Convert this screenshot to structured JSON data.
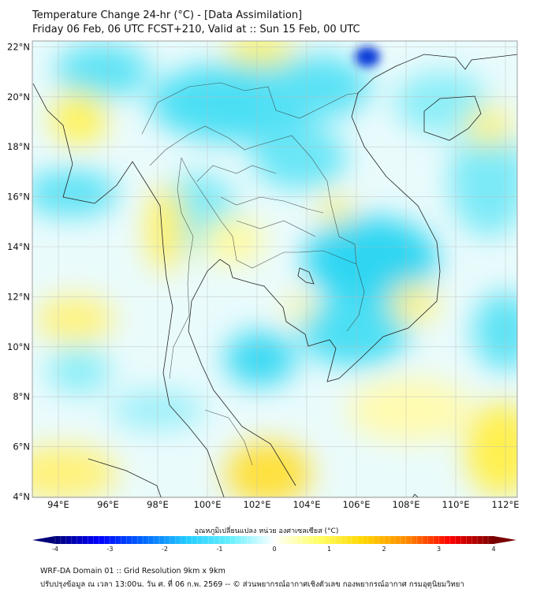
{
  "header": {
    "title": "Temperature Change 24-hr (°C) - [Data Assimilation]",
    "subtitle": "Friday 06 Feb, 06 UTC FCST+210, Valid at :: Sun 15 Feb, 00 UTC"
  },
  "map": {
    "lat_ticks": [
      "4°N",
      "6°N",
      "8°N",
      "10°N",
      "12°N",
      "14°N",
      "16°N",
      "18°N",
      "20°N",
      "22°N"
    ],
    "lon_ticks": [
      "94°E",
      "96°E",
      "98°E",
      "100°E",
      "102°E",
      "104°E",
      "106°E",
      "108°E",
      "110°E",
      "112°E"
    ]
  },
  "colorbar": {
    "title": "อุณหภูมิเปลี่ยนแปลง หน่วย องศาเซลเซียส (°C)",
    "ticks": [
      "-4",
      "-3",
      "-2",
      "-1",
      "0",
      "1",
      "2",
      "3",
      "4"
    ],
    "range": [
      -4,
      4
    ],
    "colors": [
      "#00007a",
      "#0000ff",
      "#0066ff",
      "#22ccff",
      "#66f0ff",
      "#ffffff",
      "#ffff66",
      "#ffd700",
      "#ff8c00",
      "#ff0000",
      "#7a0000"
    ]
  },
  "footer": {
    "line1": "WRF-DA Domain 01 :: Grid Resolution 9km x 9km",
    "line2": "ปรับปรุงข้อมูล ณ เวลา 13:00น. วัน ศ. ที่ 06 ก.พ. 2569 -- © ส่วนพยากรณ์อากาศเชิงตัวเลข กองพยากรณ์อากาศ กรมอุตุนิยมวิทยา"
  }
}
